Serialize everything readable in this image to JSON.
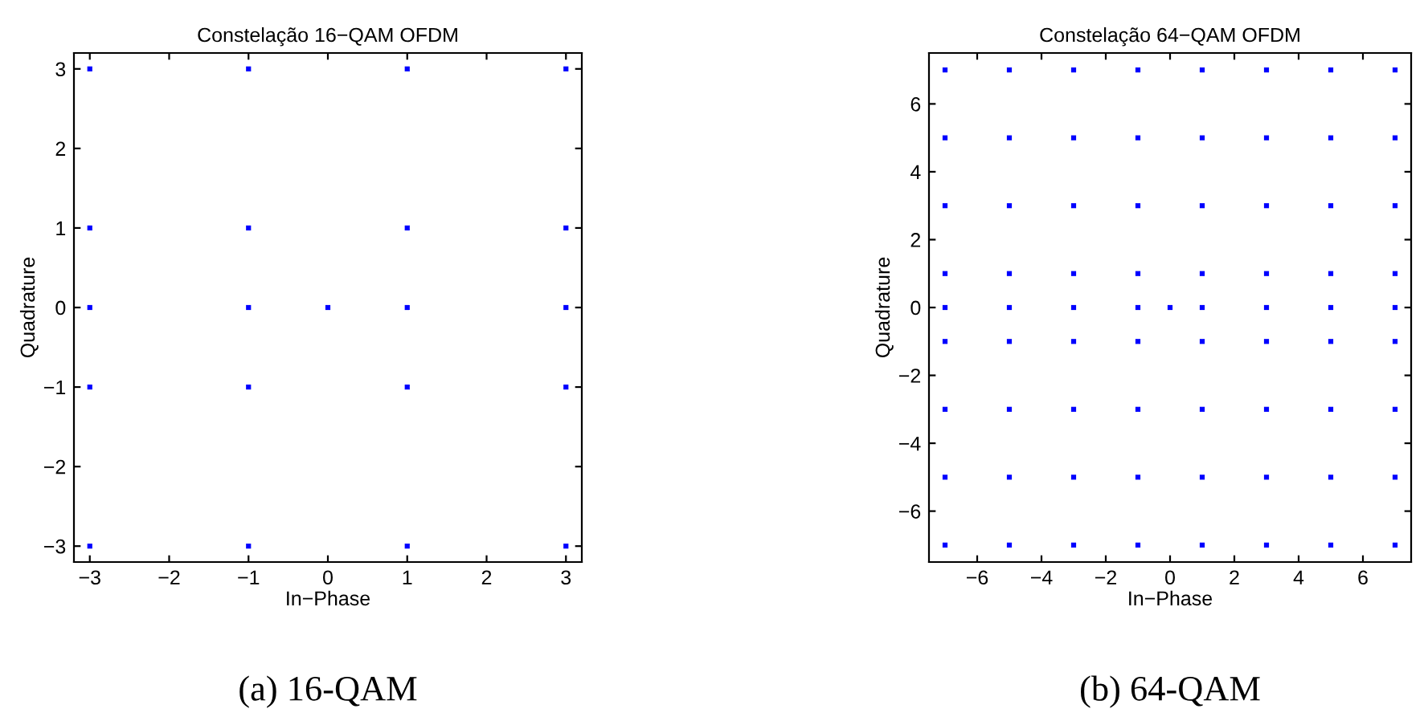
{
  "chart_data": [
    {
      "type": "scatter",
      "title": "Constelação 16−QAM OFDM",
      "xlabel": "In−Phase",
      "ylabel": "Quadrature",
      "annotations": [
        "(a) 16-QAM"
      ],
      "marker": "square",
      "grid": false,
      "color": "#0000ff",
      "x": [
        -3,
        -1,
        1,
        3,
        -3,
        -1,
        1,
        3,
        -3,
        -1,
        0,
        1,
        3,
        -3,
        -1,
        1,
        3,
        -3,
        -1,
        1,
        3
      ],
      "values": [
        3,
        3,
        3,
        3,
        1,
        1,
        1,
        1,
        0,
        0,
        0,
        0,
        0,
        -1,
        -1,
        -1,
        -1,
        -3,
        -3,
        -3,
        -3
      ],
      "xlim": [
        -3.2,
        3.2
      ],
      "ylim": [
        -3.2,
        3.2
      ],
      "xticks": [
        -3,
        -2,
        -1,
        0,
        1,
        2,
        3
      ],
      "yticks": [
        -3,
        -2,
        -1,
        0,
        1,
        2,
        3
      ]
    },
    {
      "type": "scatter",
      "title": "Constelação 64−QAM OFDM",
      "xlabel": "In−Phase",
      "ylabel": "Quadrature",
      "annotations": [
        "(b) 64-QAM"
      ],
      "marker": "square",
      "grid": false,
      "color": "#0000ff",
      "x": [
        -7,
        -5,
        -3,
        -1,
        1,
        3,
        5,
        7,
        -7,
        -5,
        -3,
        -1,
        1,
        3,
        5,
        7,
        -7,
        -5,
        -3,
        -1,
        1,
        3,
        5,
        7,
        -7,
        -5,
        -3,
        -1,
        1,
        3,
        5,
        7,
        -7,
        -5,
        -3,
        -1,
        0,
        1,
        3,
        5,
        7,
        -7,
        -5,
        -3,
        -1,
        1,
        3,
        5,
        7,
        -7,
        -5,
        -3,
        -1,
        1,
        3,
        5,
        7,
        -7,
        -5,
        -3,
        -1,
        1,
        3,
        5,
        7,
        -7,
        -5,
        -3,
        -1,
        1,
        3,
        5,
        7
      ],
      "values": [
        7,
        7,
        7,
        7,
        7,
        7,
        7,
        7,
        5,
        5,
        5,
        5,
        5,
        5,
        5,
        5,
        3,
        3,
        3,
        3,
        3,
        3,
        3,
        3,
        1,
        1,
        1,
        1,
        1,
        1,
        1,
        1,
        0,
        0,
        0,
        0,
        0,
        0,
        0,
        0,
        0,
        -1,
        -1,
        -1,
        -1,
        -1,
        -1,
        -1,
        -1,
        -3,
        -3,
        -3,
        -3,
        -3,
        -3,
        -3,
        -3,
        -5,
        -5,
        -5,
        -5,
        -5,
        -5,
        -5,
        -5,
        -7,
        -7,
        -7,
        -7,
        -7,
        -7,
        -7,
        -7
      ],
      "xlim": [
        -7.5,
        7.5
      ],
      "ylim": [
        -7.5,
        7.5
      ],
      "xticks": [
        -6,
        -4,
        -2,
        0,
        2,
        4,
        6
      ],
      "yticks": [
        -6,
        -4,
        -2,
        0,
        2,
        4,
        6
      ]
    }
  ]
}
